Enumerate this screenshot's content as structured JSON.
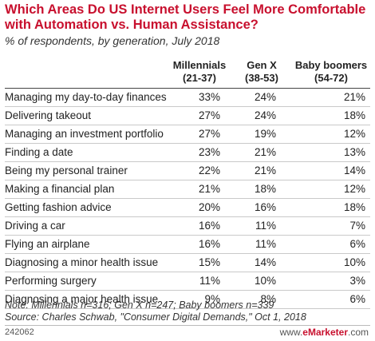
{
  "header": {
    "title": "Which Areas Do US Internet Users Feel More Comfortable with Automation vs. Human Assistance?",
    "subtitle": "% of respondents, by generation, July 2018"
  },
  "chart_data": {
    "type": "table",
    "columns": [
      {
        "name": "Millennials",
        "sub": "(21-37)"
      },
      {
        "name": "Gen X",
        "sub": "(38-53)"
      },
      {
        "name": "Baby boomers",
        "sub": "(54-72)"
      }
    ],
    "rows": [
      {
        "label": "Managing my day-to-day finances",
        "values": [
          "33%",
          "24%",
          "21%"
        ]
      },
      {
        "label": "Delivering takeout",
        "values": [
          "27%",
          "24%",
          "18%"
        ]
      },
      {
        "label": "Managing an investment portfolio",
        "values": [
          "27%",
          "19%",
          "12%"
        ]
      },
      {
        "label": "Finding a date",
        "values": [
          "23%",
          "21%",
          "13%"
        ]
      },
      {
        "label": "Being my personal trainer",
        "values": [
          "22%",
          "21%",
          "14%"
        ]
      },
      {
        "label": "Making a financial plan",
        "values": [
          "21%",
          "18%",
          "12%"
        ]
      },
      {
        "label": "Getting fashion advice",
        "values": [
          "20%",
          "16%",
          "18%"
        ]
      },
      {
        "label": "Driving a car",
        "values": [
          "16%",
          "11%",
          "7%"
        ]
      },
      {
        "label": "Flying an airplane",
        "values": [
          "16%",
          "11%",
          "6%"
        ]
      },
      {
        "label": "Diagnosing a minor health issue",
        "values": [
          "15%",
          "14%",
          "10%"
        ]
      },
      {
        "label": "Performing surgery",
        "values": [
          "11%",
          "10%",
          "3%"
        ]
      },
      {
        "label": "Diagnosing a major health issue",
        "values": [
          "9%",
          "8%",
          "6%"
        ]
      }
    ]
  },
  "footer": {
    "note": "Note: Millennials n=316; Gen X n=247; Baby boomers n=339",
    "source": "Source: Charles Schwab, \"Consumer Digital Demands,\" Oct 1, 2018",
    "chart_id": "242062",
    "brand_prefix": "www.",
    "brand_name": "eMarketer",
    "brand_suffix": ".com"
  },
  "colors": {
    "accent": "#c8102e",
    "rule": "#c9c9c9"
  }
}
